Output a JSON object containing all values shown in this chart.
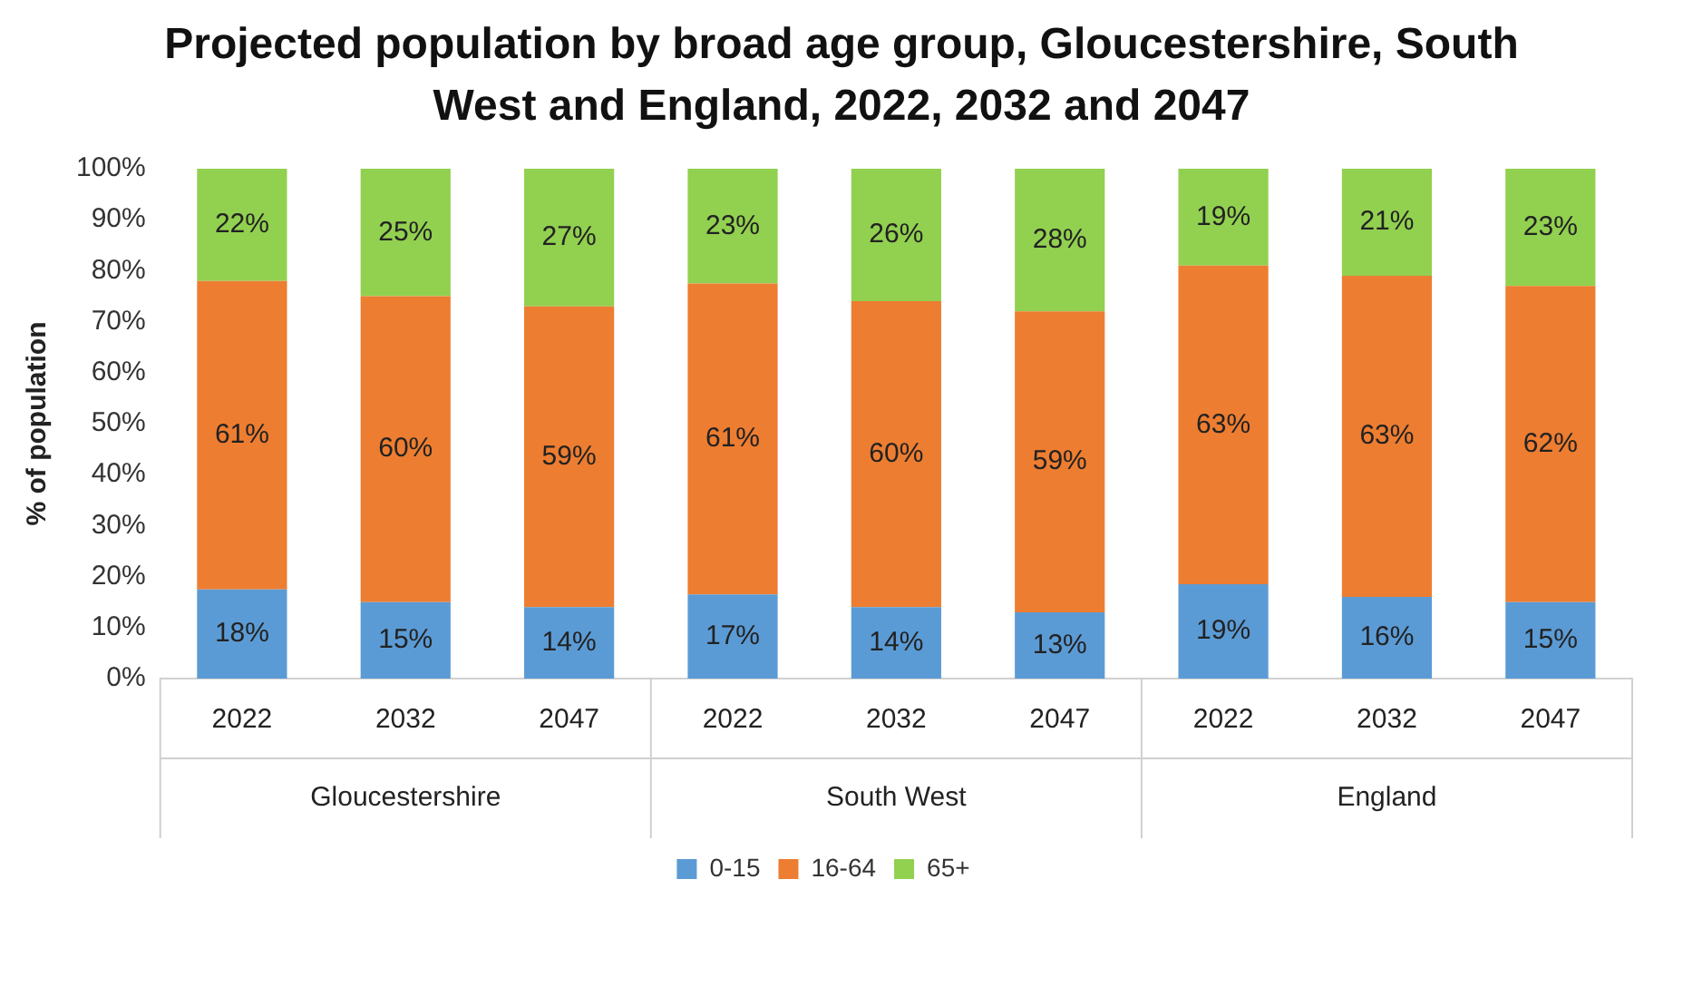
{
  "chart_data": {
    "type": "bar",
    "stacked": true,
    "title": "Projected population by broad age group, Gloucestershire, South West and England, 2022, 2032 and 2047",
    "ylabel": "% of population",
    "categories": [
      "2022",
      "2032",
      "2047",
      "2022",
      "2032",
      "2047",
      "2022",
      "2032",
      "2047"
    ],
    "annotations": [
      "Gloucestershire",
      "South West",
      "England"
    ],
    "series": [
      {
        "name": "0-15",
        "color": "#5b9bd5",
        "values": [
          17.5,
          15,
          14,
          16.5,
          14,
          13,
          18.5,
          16,
          15
        ],
        "value_labels": [
          "18%",
          "15%",
          "14%",
          "17%",
          "14%",
          "13%",
          "19%",
          "16%",
          "15%"
        ]
      },
      {
        "name": "16-64",
        "color": "#ed7d31",
        "values": [
          60.5,
          60,
          59,
          61,
          60,
          59,
          62.5,
          63,
          62
        ],
        "value_labels": [
          "61%",
          "60%",
          "59%",
          "61%",
          "60%",
          "59%",
          "63%",
          "63%",
          "62%"
        ]
      },
      {
        "name": "65+",
        "color": "#92d050",
        "values": [
          22,
          25,
          27,
          22.5,
          26,
          28,
          19,
          21,
          23
        ],
        "value_labels": [
          "22%",
          "25%",
          "27%",
          "23%",
          "26%",
          "28%",
          "19%",
          "21%",
          "23%"
        ]
      }
    ],
    "ylim": [
      0,
      100
    ],
    "yticks": [
      {
        "value": 0,
        "label": "0%"
      },
      {
        "value": 10,
        "label": "10%"
      },
      {
        "value": 20,
        "label": "20%"
      },
      {
        "value": 30,
        "label": "30%"
      },
      {
        "value": 40,
        "label": "40%"
      },
      {
        "value": 50,
        "label": "50%"
      },
      {
        "value": 60,
        "label": "60%"
      },
      {
        "value": 70,
        "label": "70%"
      },
      {
        "value": 80,
        "label": "80%"
      },
      {
        "value": 90,
        "label": "90%"
      },
      {
        "value": 100,
        "label": "100%"
      }
    ],
    "grid": false,
    "legend": "bottom"
  }
}
